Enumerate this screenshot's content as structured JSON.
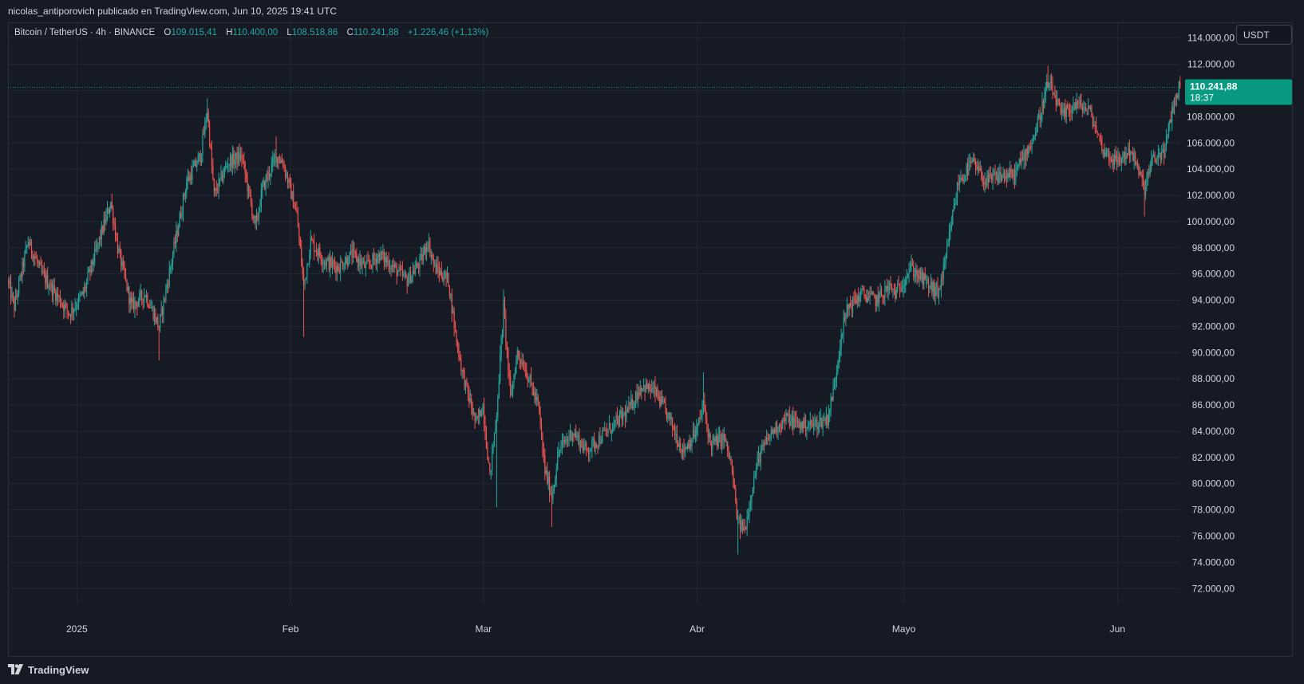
{
  "header": {
    "published_by": "nicolas_antiporovich publicado en TradingView.com, Jun 10, 2025 19:41 UTC"
  },
  "legend": {
    "symbol": "Bitcoin / TetherUS · 4h · BINANCE",
    "open_label": "O",
    "open": "109.015,41",
    "high_label": "H",
    "high": "110.400,00",
    "low_label": "L",
    "low": "108.518,86",
    "close_label": "C",
    "close": "110.241,88",
    "change": "+1.226,46 (+1,13%)"
  },
  "toolbar": {
    "currency_button": "USDT"
  },
  "price_tag": {
    "price": "110.241,88",
    "countdown": "18:37"
  },
  "footer": {
    "brand": "TradingView",
    "brand_icon": "tradingview-logo-icon"
  },
  "colors": {
    "background": "#161a25",
    "grid": "#232734",
    "up": "#26a69a",
    "down": "#ef5350",
    "text": "#d1d4dc",
    "price_tag": "#089981"
  },
  "chart_data": {
    "type": "candlestick",
    "title": "Bitcoin / TetherUS · 4h · BINANCE",
    "interval": "4h",
    "x_tick_labels": [
      "2025",
      "Feb",
      "Mar",
      "Abr",
      "Mayo",
      "Jun"
    ],
    "x_tick_dates": [
      "2025-01-01",
      "2025-02-01",
      "2025-03-01",
      "2025-04-01",
      "2025-05-01",
      "2025-06-01"
    ],
    "x_range": [
      "2024-12-22",
      "2025-06-10"
    ],
    "y_ticks": [
      72000,
      74000,
      76000,
      78000,
      80000,
      82000,
      84000,
      86000,
      88000,
      90000,
      92000,
      94000,
      96000,
      98000,
      100000,
      102000,
      104000,
      106000,
      108000,
      110000,
      112000,
      114000
    ],
    "y_tick_labels": [
      "72.000,00",
      "74.000,00",
      "76.000,00",
      "78.000,00",
      "80.000,00",
      "82.000,00",
      "84.000,00",
      "86.000,00",
      "88.000,00",
      "90.000,00",
      "92.000,00",
      "94.000,00",
      "96.000,00",
      "98.000,00",
      "100.000,00",
      "102.000,00",
      "104.000,00",
      "106.000,00",
      "108.000,00",
      "110.000,00",
      "112.000,00",
      "114.000,00"
    ],
    "ylim": [
      70800,
      115200
    ],
    "last_price": 110241.88,
    "grid": true,
    "price_path": [
      [
        "2024-12-22",
        95500
      ],
      [
        "2024-12-23",
        93500
      ],
      [
        "2024-12-25",
        98500
      ],
      [
        "2024-12-27",
        96000
      ],
      [
        "2024-12-29",
        94500
      ],
      [
        "2024-12-31",
        93000
      ],
      [
        "2025-01-02",
        94500
      ],
      [
        "2025-01-04",
        98000
      ],
      [
        "2025-01-06",
        101500
      ],
      [
        "2025-01-07",
        98000
      ],
      [
        "2025-01-09",
        93500
      ],
      [
        "2025-01-11",
        94500
      ],
      [
        "2025-01-13",
        92000
      ],
      [
        "2025-01-15",
        97500
      ],
      [
        "2025-01-17",
        103000
      ],
      [
        "2025-01-19",
        105000
      ],
      [
        "2025-01-20",
        108500
      ],
      [
        "2025-01-21",
        102000
      ],
      [
        "2025-01-23",
        104500
      ],
      [
        "2025-01-25",
        105000
      ],
      [
        "2025-01-27",
        99500
      ],
      [
        "2025-01-28",
        102500
      ],
      [
        "2025-01-30",
        105000
      ],
      [
        "2025-01-31",
        104500
      ],
      [
        "2025-02-02",
        100500
      ],
      [
        "2025-02-03",
        95000
      ],
      [
        "2025-02-04",
        98500
      ],
      [
        "2025-02-06",
        97000
      ],
      [
        "2025-02-08",
        96500
      ],
      [
        "2025-02-10",
        97500
      ],
      [
        "2025-02-12",
        96500
      ],
      [
        "2025-02-14",
        97500
      ],
      [
        "2025-02-16",
        96500
      ],
      [
        "2025-02-18",
        95500
      ],
      [
        "2025-02-20",
        97000
      ],
      [
        "2025-02-21",
        98500
      ],
      [
        "2025-02-22",
        96500
      ],
      [
        "2025-02-24",
        95500
      ],
      [
        "2025-02-25",
        91500
      ],
      [
        "2025-02-26",
        88500
      ],
      [
        "2025-02-28",
        84500
      ],
      [
        "2025-03-01",
        86000
      ],
      [
        "2025-03-02",
        80500
      ],
      [
        "2025-03-03",
        85500
      ],
      [
        "2025-03-04",
        93500
      ],
      [
        "2025-03-05",
        86500
      ],
      [
        "2025-03-06",
        90000
      ],
      [
        "2025-03-07",
        89000
      ],
      [
        "2025-03-09",
        86000
      ],
      [
        "2025-03-10",
        81000
      ],
      [
        "2025-03-11",
        79000
      ],
      [
        "2025-03-12",
        82500
      ],
      [
        "2025-03-14",
        84000
      ],
      [
        "2025-03-16",
        82500
      ],
      [
        "2025-03-18",
        83500
      ],
      [
        "2025-03-20",
        84500
      ],
      [
        "2025-03-22",
        85500
      ],
      [
        "2025-03-24",
        87500
      ],
      [
        "2025-03-26",
        87000
      ],
      [
        "2025-03-28",
        85000
      ],
      [
        "2025-03-30",
        82500
      ],
      [
        "2025-04-01",
        84000
      ],
      [
        "2025-04-02",
        86000
      ],
      [
        "2025-04-03",
        83000
      ],
      [
        "2025-04-05",
        83500
      ],
      [
        "2025-04-06",
        81500
      ],
      [
        "2025-04-07",
        77000
      ],
      [
        "2025-04-08",
        76500
      ],
      [
        "2025-04-09",
        79500
      ],
      [
        "2025-04-10",
        82000
      ],
      [
        "2025-04-12",
        84000
      ],
      [
        "2025-04-14",
        85000
      ],
      [
        "2025-04-16",
        84500
      ],
      [
        "2025-04-18",
        84500
      ],
      [
        "2025-04-20",
        85000
      ],
      [
        "2025-04-21",
        87500
      ],
      [
        "2025-04-22",
        91500
      ],
      [
        "2025-04-23",
        93500
      ],
      [
        "2025-04-25",
        94500
      ],
      [
        "2025-04-27",
        94000
      ],
      [
        "2025-04-29",
        95000
      ],
      [
        "2025-04-30",
        94500
      ],
      [
        "2025-05-02",
        96500
      ],
      [
        "2025-05-04",
        95500
      ],
      [
        "2025-05-06",
        94500
      ],
      [
        "2025-05-07",
        96500
      ],
      [
        "2025-05-08",
        100000
      ],
      [
        "2025-05-09",
        103000
      ],
      [
        "2025-05-11",
        104500
      ],
      [
        "2025-05-13",
        103000
      ],
      [
        "2025-05-15",
        103500
      ],
      [
        "2025-05-17",
        103500
      ],
      [
        "2025-05-19",
        105500
      ],
      [
        "2025-05-20",
        106500
      ],
      [
        "2025-05-22",
        110500
      ],
      [
        "2025-05-23",
        109500
      ],
      [
        "2025-05-24",
        108000
      ],
      [
        "2025-05-26",
        109000
      ],
      [
        "2025-05-28",
        108500
      ],
      [
        "2025-05-30",
        105500
      ],
      [
        "2025-06-01",
        104500
      ],
      [
        "2025-06-03",
        105500
      ],
      [
        "2025-06-05",
        102500
      ],
      [
        "2025-06-06",
        104500
      ],
      [
        "2025-06-08",
        105500
      ],
      [
        "2025-06-09",
        108500
      ],
      [
        "2025-06-10",
        110241.88
      ]
    ],
    "spikes": [
      [
        "2025-01-20",
        109400,
        "high"
      ],
      [
        "2025-02-03",
        91200,
        "low"
      ],
      [
        "2025-01-13",
        89400,
        "low"
      ],
      [
        "2025-03-03",
        78200,
        "low"
      ],
      [
        "2025-03-11",
        76700,
        "low"
      ],
      [
        "2025-04-07",
        74600,
        "low"
      ],
      [
        "2025-04-02",
        88500,
        "high"
      ],
      [
        "2025-05-22",
        111900,
        "high"
      ],
      [
        "2025-06-05",
        100400,
        "low"
      ],
      [
        "2025-03-04",
        94800,
        "high"
      ],
      [
        "2025-01-30",
        106500,
        "high"
      ]
    ]
  }
}
